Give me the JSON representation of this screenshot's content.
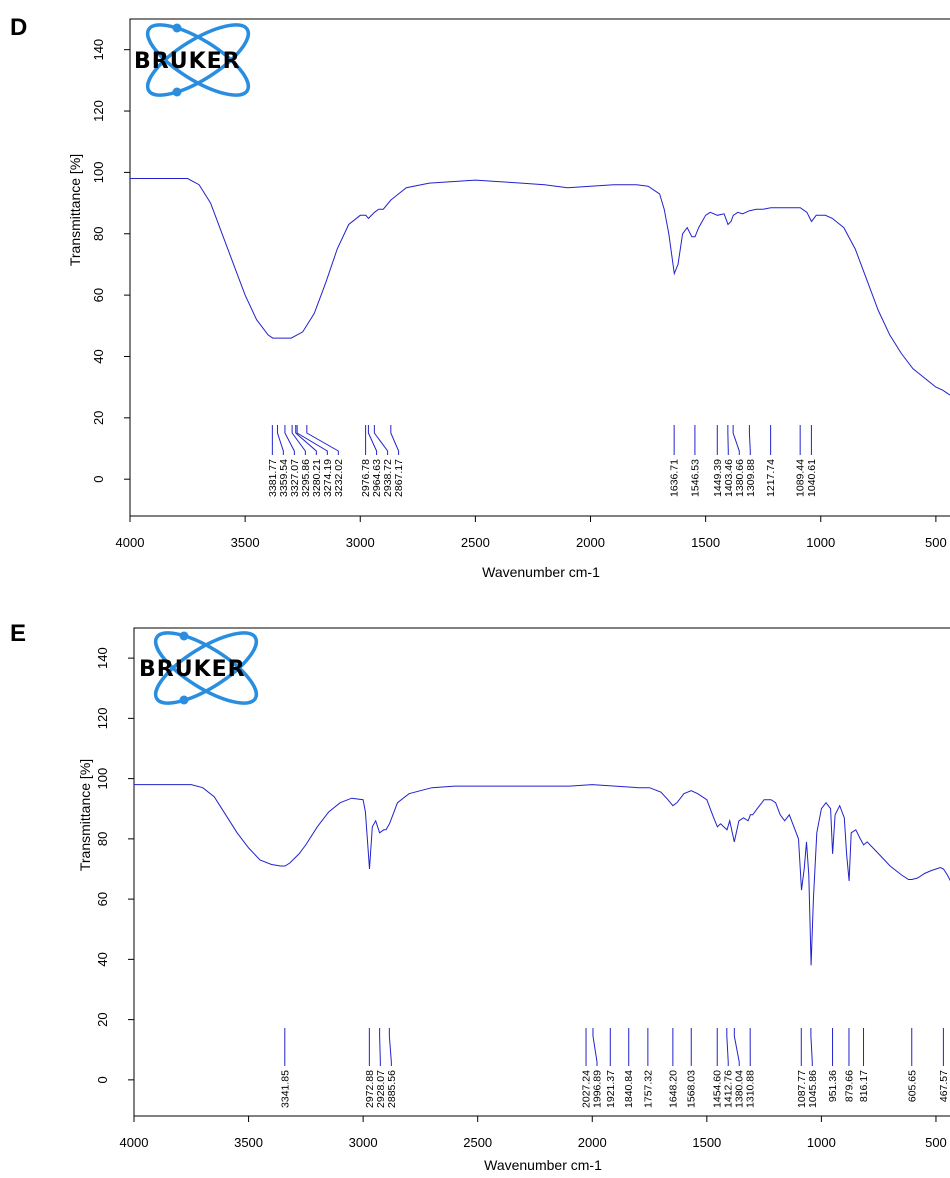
{
  "panels": [
    {
      "panel_label": "D",
      "logo": "BRUKER",
      "chart_data": {
        "type": "line",
        "xlabel": "Wavenumber cm-1",
        "ylabel": "Transmittance [%]",
        "xlim": [
          4000,
          430
        ],
        "x_reversed": true,
        "ylim": [
          -12,
          150
        ],
        "x_ticks": [
          4000,
          3500,
          3000,
          2500,
          2000,
          1500,
          1000,
          500
        ],
        "y_ticks": [
          0,
          20,
          40,
          60,
          80,
          100,
          120,
          140
        ],
        "line_color": "#2222cc",
        "grid": false,
        "series": [
          {
            "x": [
              4000,
              3900,
              3800,
              3750,
              3700,
              3650,
              3600,
              3550,
              3500,
              3450,
              3400,
              3380,
              3350,
              3300,
              3250,
              3200,
              3150,
              3100,
              3050,
              3000,
              2976,
              2964,
              2938,
              2920,
              2900,
              2867,
              2850,
              2800,
              2700,
              2600,
              2500,
              2400,
              2300,
              2200,
              2100,
              2000,
              1900,
              1800,
              1750,
              1700,
              1680,
              1660,
              1636,
              1620,
              1600,
              1580,
              1560,
              1546,
              1530,
              1500,
              1480,
              1449,
              1420,
              1403,
              1390,
              1380,
              1360,
              1340,
              1309,
              1280,
              1250,
              1217,
              1190,
              1150,
              1120,
              1089,
              1060,
              1040,
              1020,
              1000,
              980,
              950,
              900,
              850,
              800,
              750,
              700,
              650,
              600,
              550,
              500,
              470,
              450,
              430
            ],
            "y": [
              98,
              98,
              98,
              98,
              96,
              90,
              80,
              70,
              60,
              52,
              47,
              46,
              46,
              46,
              48,
              54,
              64,
              75,
              83,
              86,
              86,
              85,
              87,
              88,
              88,
              91,
              92,
              95,
              96.5,
              97,
              97.5,
              97,
              96.5,
              96,
              95,
              95.5,
              96,
              96,
              95.5,
              93,
              88,
              80,
              67,
              70,
              80,
              82,
              79,
              79,
              82,
              86,
              87,
              86,
              86.5,
              83,
              84,
              86,
              87,
              86.5,
              87.5,
              88,
              88,
              88.5,
              88.5,
              88.5,
              88.5,
              88.5,
              87,
              84,
              86,
              86,
              86,
              85,
              82,
              75,
              65,
              55,
              47,
              41,
              36,
              33,
              30,
              29,
              28,
              27
            ]
          }
        ],
        "peak_labels": [
          "3381.77",
          "3359.54",
          "3327.07",
          "3295.86",
          "3280.21",
          "3274.19",
          "3232.02",
          "2976.78",
          "2964.63",
          "2938.72",
          "2867.17",
          "1636.71",
          "1546.53",
          "1449.39",
          "1403.46",
          "1380.66",
          "1309.88",
          "1217.74",
          "1089.44",
          "1040.61"
        ],
        "peak_values": [
          3381.77,
          3359.54,
          3327.07,
          3295.86,
          3280.21,
          3274.19,
          3232.02,
          2976.78,
          2964.63,
          2938.72,
          2867.17,
          1636.71,
          1546.53,
          1449.39,
          1403.46,
          1380.66,
          1309.88,
          1217.74,
          1089.44,
          1040.61
        ]
      }
    },
    {
      "panel_label": "E",
      "logo": "BRUKER",
      "chart_data": {
        "type": "line",
        "xlabel": "Wavenumber cm-1",
        "ylabel": "Transmittance [%]",
        "xlim": [
          4000,
          430
        ],
        "x_reversed": true,
        "ylim": [
          -12,
          150
        ],
        "x_ticks": [
          4000,
          3500,
          3000,
          2500,
          2000,
          1500,
          1000,
          500
        ],
        "y_ticks": [
          0,
          20,
          40,
          60,
          80,
          100,
          120,
          140
        ],
        "line_color": "#2222cc",
        "grid": false,
        "series": [
          {
            "x": [
              4000,
              3900,
              3800,
              3750,
              3700,
              3650,
              3600,
              3550,
              3500,
              3450,
              3400,
              3360,
              3341,
              3320,
              3280,
              3250,
              3200,
              3150,
              3100,
              3050,
              3000,
              2990,
              2972,
              2960,
              2945,
              2928,
              2910,
              2900,
              2885,
              2870,
              2850,
              2800,
              2700,
              2600,
              2500,
              2400,
              2300,
              2200,
              2100,
              2000,
              1900,
              1800,
              1750,
              1700,
              1670,
              1648,
              1630,
              1600,
              1568,
              1540,
              1500,
              1470,
              1454,
              1440,
              1412,
              1400,
              1380,
              1360,
              1340,
              1320,
              1310,
              1300,
              1280,
              1250,
              1220,
              1200,
              1180,
              1160,
              1140,
              1120,
              1100,
              1087,
              1075,
              1065,
              1055,
              1045,
              1035,
              1020,
              1000,
              980,
              960,
              951,
              940,
              920,
              900,
              890,
              879,
              870,
              850,
              830,
              816,
              800,
              750,
              700,
              650,
              620,
              605,
              580,
              550,
              520,
              500,
              480,
              467,
              450,
              430
            ],
            "y": [
              98,
              98,
              98,
              98,
              97,
              94,
              88,
              82,
              77,
              73,
              71.5,
              71,
              71,
              72,
              75,
              78,
              84,
              89,
              92,
              93.5,
              93,
              89,
              70,
              84,
              86,
              82,
              83,
              83,
              85,
              88,
              92,
              95,
              97,
              97.5,
              97.5,
              97.5,
              97.5,
              97.5,
              97.5,
              98,
              97.5,
              97,
              97,
              95.5,
              93,
              91,
              92,
              95,
              96,
              95,
              93,
              87,
              84,
              85,
              83,
              86,
              79,
              86,
              87,
              86,
              88,
              88,
              90,
              93,
              93,
              92,
              88,
              86,
              88,
              84,
              80,
              63,
              70,
              79,
              68,
              38,
              60,
              82,
              90,
              92,
              90,
              75,
              88,
              91,
              87,
              75,
              66,
              82,
              83,
              80,
              78,
              79,
              75,
              71,
              68,
              66.5,
              66.5,
              67,
              68.5,
              69.5,
              70,
              70.5,
              70,
              68,
              65
            ]
          }
        ],
        "peak_labels": [
          "3341.85",
          "2972.88",
          "2928.07",
          "2885.56",
          "2027.24",
          "1996.89",
          "1921.37",
          "1840.84",
          "1757.32",
          "1648.20",
          "1568.03",
          "1454.60",
          "1412.76",
          "1380.04",
          "1310.88",
          "1087.77",
          "1045.86",
          "951.36",
          "879.66",
          "816.17",
          "605.65",
          "467.57"
        ],
        "peak_values": [
          3341.85,
          2972.88,
          2928.07,
          2885.56,
          2027.24,
          1996.89,
          1921.37,
          1840.84,
          1757.32,
          1648.2,
          1568.03,
          1454.6,
          1412.76,
          1380.04,
          1310.88,
          1087.77,
          1045.86,
          951.36,
          879.66,
          816.17,
          605.65,
          467.57
        ]
      }
    }
  ]
}
